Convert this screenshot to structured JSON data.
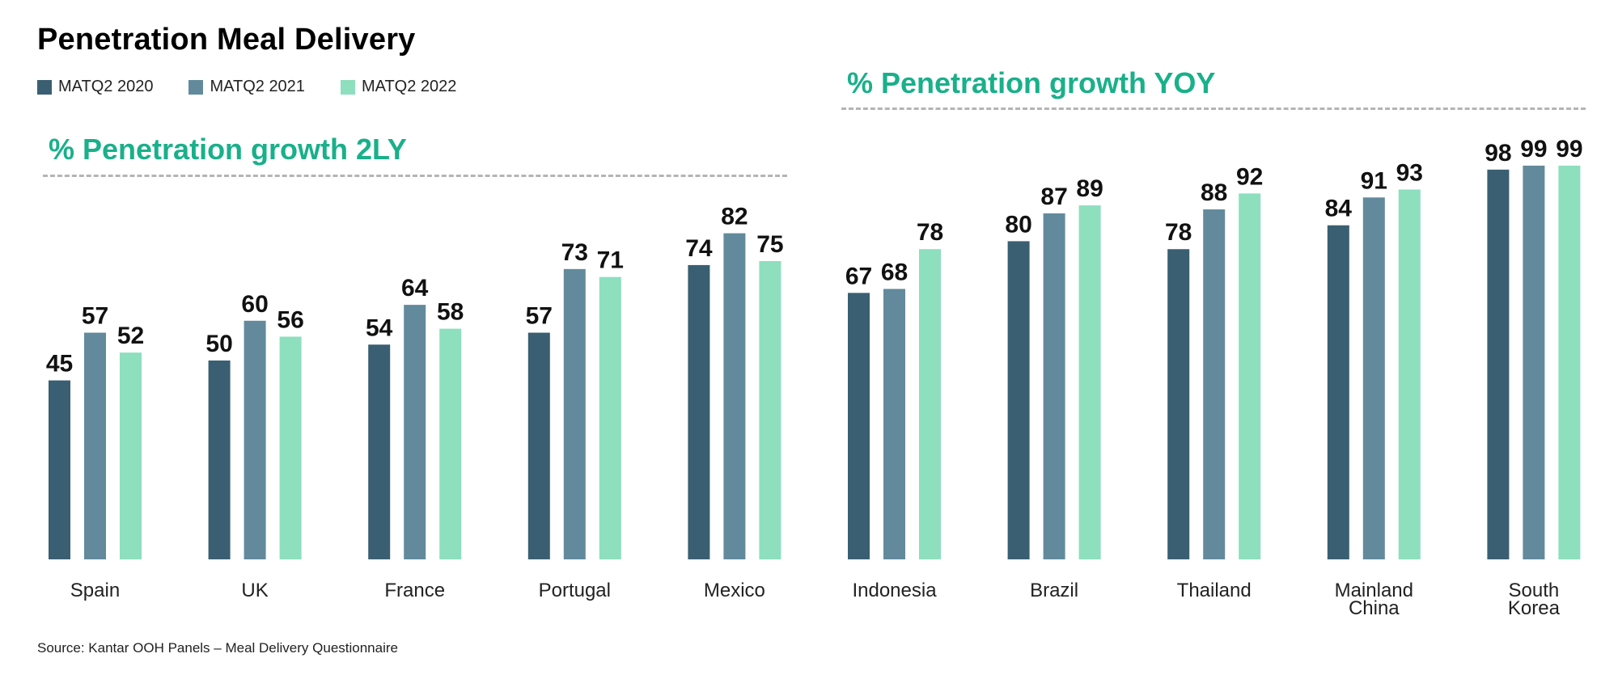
{
  "title": "Penetration Meal Delivery",
  "section_headings": {
    "left": "% Penetration growth 2LY",
    "right": "% Penetration growth YOY"
  },
  "source": "Source: Kantar OOH Panels – Meal Delivery Questionnaire",
  "colors": {
    "MATQ2 2020": "#3a5f72",
    "MATQ2 2021": "#628a9c",
    "MATQ2 2022": "#8ddfbe",
    "section_heading": "#19b08a"
  },
  "chart_data": {
    "type": "bar",
    "categories": [
      "Spain",
      "UK",
      "France",
      "Portugal",
      "Mexico",
      "Indonesia",
      "Brazil",
      "Thailand",
      "Mainland China",
      "South Korea"
    ],
    "series": [
      {
        "name": "MATQ2 2020",
        "values": [
          45,
          50,
          54,
          57,
          74,
          67,
          80,
          78,
          84,
          98
        ]
      },
      {
        "name": "MATQ2 2021",
        "values": [
          57,
          60,
          64,
          73,
          82,
          68,
          87,
          88,
          91,
          99
        ]
      },
      {
        "name": "MATQ2 2022",
        "values": [
          52,
          56,
          58,
          71,
          75,
          78,
          89,
          92,
          93,
          99
        ]
      }
    ],
    "title": "Penetration Meal Delivery",
    "legend": "top-left",
    "data_labels": true,
    "grid": false,
    "ylim": [
      0,
      100
    ]
  }
}
